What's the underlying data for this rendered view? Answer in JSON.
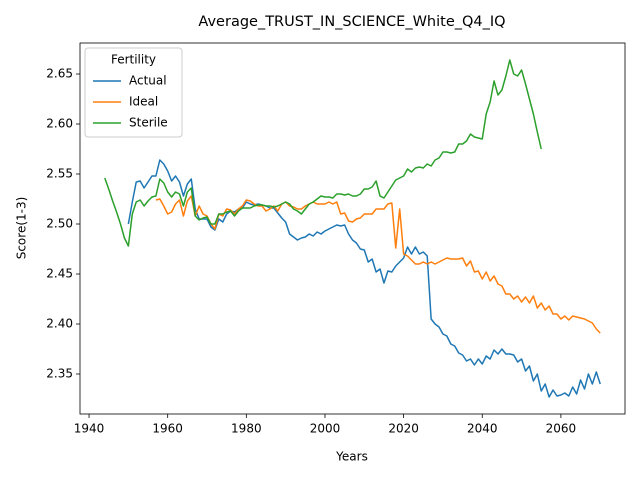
{
  "chart_data": {
    "type": "line",
    "title": "Average_TRUST_IN_SCIENCE_White_Q4_IQ",
    "xlabel": "Years",
    "ylabel": "Score(1-3)",
    "legend_title": "Fertility",
    "legend": "upper left",
    "grid": false,
    "xlim": [
      1937.7,
      2076.3
    ],
    "ylim": [
      2.31,
      2.681
    ],
    "xticks": [
      1940,
      1960,
      1980,
      2000,
      2020,
      2040,
      2060
    ],
    "yticks": [
      2.35,
      {
        "value": 2.4,
        "label": "2.40"
      },
      2.45,
      {
        "value": 2.5,
        "label": "2.50"
      },
      2.55,
      {
        "value": 2.6,
        "label": "2.60"
      },
      2.65
    ],
    "x": [
      1944,
      1945,
      1946,
      1947,
      1948,
      1949,
      1950,
      1951,
      1952,
      1953,
      1954,
      1955,
      1956,
      1957,
      1958,
      1959,
      1960,
      1961,
      1962,
      1963,
      1964,
      1965,
      1966,
      1967,
      1968,
      1969,
      1970,
      1971,
      1972,
      1973,
      1974,
      1975,
      1976,
      1977,
      1978,
      1979,
      1980,
      1981,
      1982,
      1983,
      1984,
      1985,
      1986,
      1987,
      1988,
      1989,
      1990,
      1991,
      1992,
      1993,
      1994,
      1995,
      1996,
      1997,
      1998,
      1999,
      2000,
      2001,
      2002,
      2003,
      2004,
      2005,
      2006,
      2007,
      2008,
      2009,
      2010,
      2011,
      2012,
      2013,
      2014,
      2015,
      2016,
      2017,
      2018,
      2019,
      2020,
      2021,
      2022,
      2023,
      2024,
      2025,
      2026,
      2027,
      2028,
      2029,
      2030,
      2031,
      2032,
      2033,
      2034,
      2035,
      2036,
      2037,
      2038,
      2039,
      2040,
      2041,
      2042,
      2043,
      2044,
      2045,
      2046,
      2047,
      2048,
      2049,
      2050,
      2051,
      2052,
      2053,
      2054,
      2055,
      2056,
      2057,
      2058,
      2059,
      2060,
      2061,
      2062,
      2063,
      2064,
      2065,
      2066,
      2067,
      2068,
      2069,
      2070
    ],
    "series": [
      {
        "name": "Actual",
        "color": "#1f77b4",
        "values": [
          null,
          null,
          null,
          null,
          null,
          null,
          2.5,
          2.522,
          2.542,
          2.543,
          2.536,
          2.542,
          2.548,
          2.548,
          2.564,
          2.56,
          2.553,
          2.543,
          2.548,
          2.542,
          2.528,
          2.54,
          2.545,
          2.515,
          2.505,
          2.505,
          2.505,
          2.497,
          2.494,
          2.505,
          2.502,
          2.51,
          2.513,
          2.512,
          2.515,
          2.516,
          2.522,
          2.52,
          2.519,
          2.52,
          2.519,
          2.518,
          2.516,
          2.516,
          2.511,
          2.506,
          2.502,
          2.49,
          2.487,
          2.484,
          2.486,
          2.487,
          2.49,
          2.488,
          2.492,
          2.49,
          2.493,
          2.495,
          2.497,
          2.499,
          2.498,
          2.499,
          2.49,
          2.484,
          2.481,
          2.475,
          2.474,
          2.462,
          2.465,
          2.452,
          2.455,
          2.441,
          2.453,
          2.452,
          2.458,
          2.462,
          2.466,
          2.477,
          2.47,
          2.477,
          2.47,
          2.472,
          2.468,
          2.405,
          2.4,
          2.397,
          2.39,
          2.388,
          2.38,
          2.378,
          2.371,
          2.369,
          2.363,
          2.365,
          2.359,
          2.365,
          2.36,
          2.368,
          2.365,
          2.374,
          2.37,
          2.375,
          2.37,
          2.37,
          2.369,
          2.362,
          2.365,
          2.353,
          2.358,
          2.343,
          2.35,
          2.333,
          2.34,
          2.327,
          2.334,
          2.328,
          2.329,
          2.331,
          2.328,
          2.337,
          2.33,
          2.344,
          2.335,
          2.35,
          2.34,
          2.352,
          2.34
        ]
      },
      {
        "name": "Ideal",
        "color": "#ff7f0e",
        "values": [
          null,
          null,
          null,
          null,
          null,
          null,
          null,
          null,
          null,
          null,
          null,
          null,
          null,
          2.524,
          2.525,
          2.518,
          2.51,
          2.512,
          2.52,
          2.524,
          2.508,
          2.523,
          2.528,
          2.508,
          2.518,
          2.51,
          2.508,
          2.5,
          2.495,
          2.51,
          2.508,
          2.515,
          2.514,
          2.51,
          2.515,
          2.518,
          2.524,
          2.523,
          2.52,
          2.518,
          2.518,
          2.513,
          2.515,
          2.518,
          2.513,
          2.52,
          2.522,
          2.518,
          2.517,
          2.515,
          2.515,
          2.518,
          2.52,
          2.522,
          2.52,
          2.52,
          2.52,
          2.522,
          2.52,
          2.522,
          2.51,
          2.511,
          2.503,
          2.502,
          2.505,
          2.506,
          2.51,
          2.51,
          2.51,
          2.515,
          2.515,
          2.515,
          2.52,
          2.521,
          2.476,
          2.515,
          2.47,
          2.468,
          2.464,
          2.46,
          2.46,
          2.462,
          2.46,
          2.462,
          2.46,
          2.462,
          2.464,
          2.466,
          2.465,
          2.465,
          2.465,
          2.466,
          2.458,
          2.463,
          2.452,
          2.453,
          2.445,
          2.452,
          2.443,
          2.448,
          2.44,
          2.438,
          2.43,
          2.43,
          2.425,
          2.428,
          2.422,
          2.427,
          2.421,
          2.428,
          2.416,
          2.421,
          2.414,
          2.418,
          2.41,
          2.41,
          2.405,
          2.408,
          2.404,
          2.408,
          2.407,
          2.406,
          2.405,
          2.403,
          2.401,
          2.395,
          2.391
        ]
      },
      {
        "name": "Sterile",
        "color": "#2ca02c",
        "values": [
          2.546,
          2.535,
          2.523,
          2.512,
          2.5,
          2.486,
          2.478,
          2.51,
          2.522,
          2.524,
          2.518,
          2.523,
          2.527,
          2.528,
          2.545,
          2.541,
          2.532,
          2.527,
          2.532,
          2.53,
          2.518,
          2.532,
          2.536,
          2.508,
          2.504,
          2.506,
          2.507,
          2.5,
          2.5,
          2.51,
          2.51,
          2.512,
          2.513,
          2.508,
          2.513,
          2.516,
          2.516,
          2.516,
          2.518,
          2.519,
          2.519,
          2.518,
          2.518,
          2.517,
          2.518,
          2.52,
          2.522,
          2.52,
          2.515,
          2.513,
          2.51,
          2.515,
          2.52,
          2.522,
          2.525,
          2.528,
          2.527,
          2.527,
          2.526,
          2.53,
          2.53,
          2.529,
          2.53,
          2.528,
          2.528,
          2.53,
          2.535,
          2.535,
          2.537,
          2.543,
          2.528,
          2.526,
          2.532,
          2.538,
          2.544,
          2.546,
          2.548,
          2.555,
          2.552,
          2.556,
          2.557,
          2.556,
          2.56,
          2.558,
          2.564,
          2.566,
          2.572,
          2.572,
          2.571,
          2.572,
          2.58,
          2.58,
          2.583,
          2.59,
          2.587,
          2.586,
          2.585,
          2.61,
          2.622,
          2.643,
          2.629,
          2.634,
          2.648,
          2.664,
          2.65,
          2.648,
          2.654,
          2.64,
          2.625,
          2.61,
          2.592,
          2.575,
          null,
          null,
          null,
          null,
          null,
          null,
          null,
          null,
          null,
          null,
          null,
          null,
          null,
          null,
          null
        ]
      }
    ]
  }
}
